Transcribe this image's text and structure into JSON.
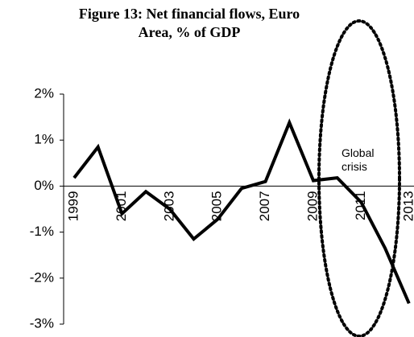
{
  "chart_data": {
    "type": "line",
    "title": "Figure 13: Net financial flows, Euro Area, % of GDP",
    "annotation": "Global crisis",
    "categories": [
      "1999",
      null,
      "2001",
      null,
      "2003",
      null,
      "2005",
      null,
      "2007",
      null,
      "2009",
      null,
      "2011",
      null,
      "2013"
    ],
    "series": [
      {
        "name": "Net financial flows",
        "color": "#000000",
        "values": [
          0.18,
          0.85,
          -0.6,
          -0.12,
          -0.5,
          -1.15,
          -0.72,
          -0.05,
          0.1,
          1.38,
          0.12,
          0.18,
          -0.35,
          -1.35,
          -2.55
        ]
      }
    ],
    "ylim": [
      -3,
      2
    ],
    "yticks": [
      {
        "value": -3,
        "label": "-3%"
      },
      {
        "value": -2,
        "label": "-2%"
      },
      {
        "value": -1,
        "label": "-1%"
      },
      {
        "value": 0,
        "label": "0%"
      },
      {
        "value": 1,
        "label": "1%"
      },
      {
        "value": 2,
        "label": "2%"
      }
    ],
    "grid": false
  }
}
